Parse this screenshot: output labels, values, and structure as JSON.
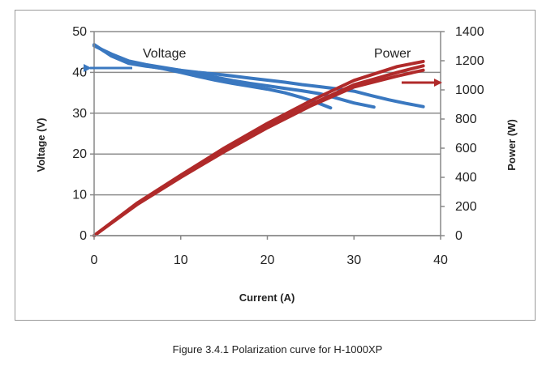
{
  "figure_caption": "Figure 3.4.1 Polarization curve for H-1000XP",
  "chart_data": {
    "type": "line",
    "xlabel": "Current (A)",
    "ylabel_left": "Voltage (V)",
    "ylabel_right": "Power (W)",
    "xlim": [
      0,
      40
    ],
    "ylim_left": [
      0,
      50
    ],
    "ylim_right": [
      0,
      1400
    ],
    "x_ticks": [
      "0",
      "10",
      "20",
      "30",
      "40"
    ],
    "y_left_ticks": [
      "0",
      "10",
      "20",
      "30",
      "40",
      "50"
    ],
    "y_right_ticks": [
      "0",
      "200",
      "400",
      "600",
      "800",
      "1000",
      "1200",
      "1400"
    ],
    "grid": "horizontal",
    "annotations": {
      "voltage_label": "Voltage",
      "power_label": "Power"
    },
    "colors": {
      "voltage": "#3a78c0",
      "power": "#b02a2a",
      "grid": "#8c8c8c"
    },
    "voltage_series": [
      {
        "axis": "left",
        "x": [
          0,
          2,
          4,
          6,
          8,
          10,
          12,
          14,
          16,
          18,
          20,
          22,
          24,
          26,
          28,
          30,
          32,
          34,
          36,
          38
        ],
        "values": [
          46.8,
          44.0,
          42.2,
          41.5,
          41.0,
          40.5,
          40.0,
          39.6,
          39.1,
          38.6,
          38.1,
          37.6,
          37.0,
          36.5,
          36.0,
          35.4,
          34.3,
          33.3,
          32.4,
          31.6
        ]
      },
      {
        "axis": "left",
        "x": [
          0,
          2,
          4,
          6,
          8,
          10,
          12,
          14,
          16,
          18,
          20,
          22,
          24,
          26,
          28,
          30,
          32.3
        ],
        "values": [
          46.5,
          44.5,
          42.8,
          41.9,
          41.2,
          40.5,
          39.6,
          38.8,
          38.0,
          37.3,
          36.7,
          36.1,
          35.5,
          34.8,
          33.7,
          32.5,
          31.5
        ]
      },
      {
        "axis": "left",
        "x": [
          0,
          2,
          4,
          6,
          8,
          10,
          12,
          14,
          16,
          18,
          20,
          22,
          24,
          25.5,
          27.3
        ],
        "values": [
          46.6,
          44.3,
          42.5,
          41.6,
          40.9,
          40.0,
          39.0,
          38.1,
          37.3,
          36.6,
          35.9,
          35.0,
          33.8,
          32.8,
          31.3
        ]
      }
    ],
    "power_series": [
      {
        "axis": "right",
        "x": [
          0,
          5,
          10,
          15,
          20,
          25,
          30,
          35,
          38
        ],
        "values": [
          0,
          225,
          415,
          600,
          770,
          925,
          1065,
          1160,
          1195
        ]
      },
      {
        "axis": "right",
        "x": [
          0,
          5,
          10,
          15,
          20,
          25,
          30,
          35,
          38
        ],
        "values": [
          0,
          220,
          405,
          585,
          750,
          900,
          1035,
          1120,
          1165
        ]
      },
      {
        "axis": "right",
        "x": [
          0,
          5,
          10,
          15,
          20,
          25,
          30,
          35,
          38
        ],
        "values": [
          0,
          215,
          400,
          575,
          740,
          890,
          1020,
          1095,
          1135
        ]
      }
    ]
  }
}
